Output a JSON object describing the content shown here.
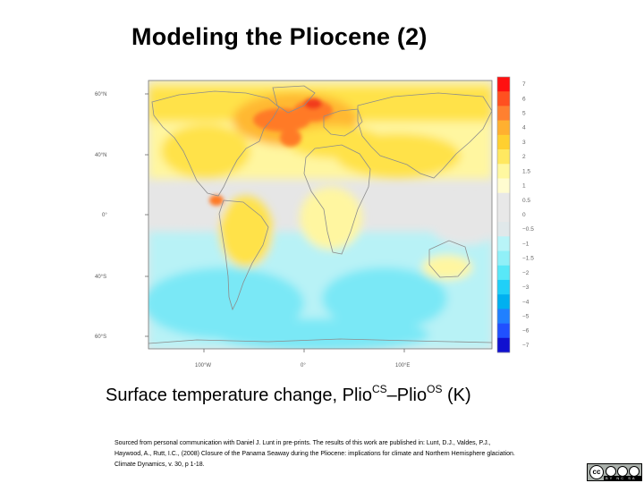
{
  "slide": {
    "title": "Modeling the Pliocene (2)"
  },
  "map": {
    "lat_labels": [
      "60°N",
      "40°N",
      "0°",
      "40°S",
      "60°S"
    ],
    "lon_labels": [
      "100°W",
      "0°",
      "100°E"
    ],
    "colorbar": {
      "labels": [
        "7",
        "6",
        "5",
        "4",
        "3",
        "2",
        "1.5",
        "1",
        "0.5",
        "0",
        "−0.5",
        "−1",
        "−1.5",
        "−2",
        "−3",
        "−4",
        "−5",
        "−6",
        "−7"
      ],
      "colors": [
        "#ff1010",
        "#ff5020",
        "#ff8030",
        "#ffb030",
        "#ffd030",
        "#ffe860",
        "#fff8a0",
        "#fffcd0",
        "#e8e8e8",
        "#e8e8e8",
        "#e0e8ea",
        "#b8f4f8",
        "#90f0f8",
        "#58e8f8",
        "#20d0f8",
        "#00b0f0",
        "#2080ff",
        "#2050ff",
        "#1010d0"
      ]
    },
    "colors": {
      "ocean_neutral": "#e6e6e6",
      "warm_light": "#fff6a0",
      "warm_mid": "#ffe24a",
      "warm_strong": "#ffb830",
      "hot": "#ff7a28",
      "hottest": "#f23a1c",
      "cool_light": "#b8f2f6",
      "cool_mid": "#7ae8f6",
      "coast": "#8c8c8c"
    }
  },
  "caption": {
    "prefix": "Surface temperature change, Plio",
    "sup1": "CS",
    "middle": "–Plio",
    "sup2": "OS",
    "suffix": " (K)"
  },
  "source": {
    "line1": "Sourced from personal communication with Daniel J. Lunt in pre-prints. The results of this work are published in: Lunt, D.J., Valdes, P.J.,",
    "line2": "Haywood, A., Rutt, I.C., (2008) Closure of the Panama Seaway during the Pliocene: implications for climate and Northern Hemisphere glaciation.",
    "line3": "Climate Dynamics, v. 30, p 1-18."
  },
  "license": {
    "cc": "cc",
    "terms": "BY NC SA"
  }
}
